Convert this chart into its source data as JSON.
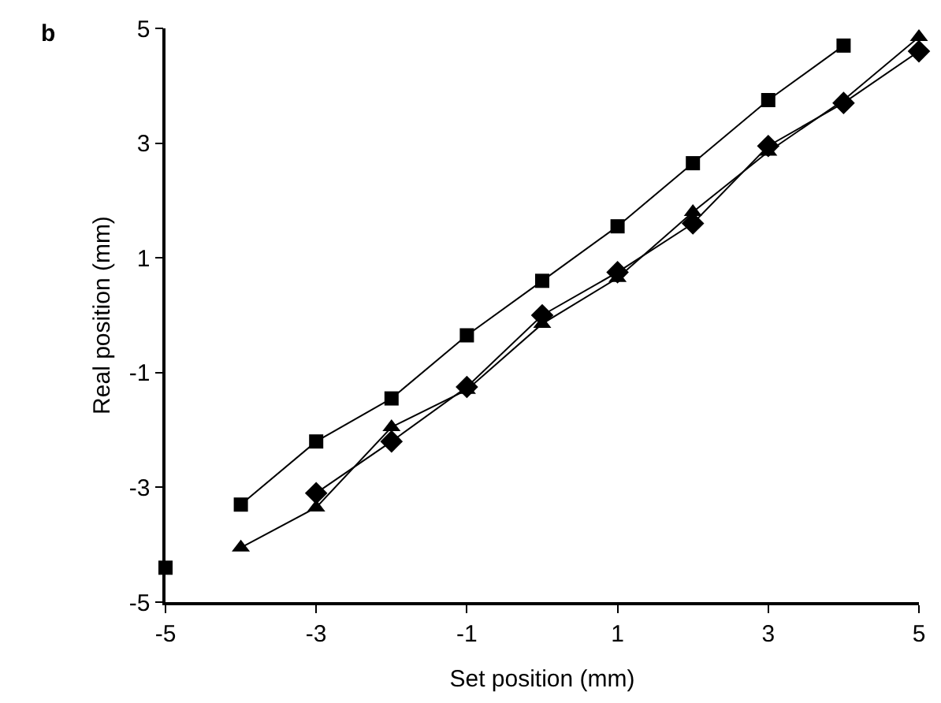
{
  "chart_data": {
    "type": "line",
    "xlabel": "Set position (mm)",
    "ylabel": "Real position (mm)",
    "annotations": [
      "b"
    ],
    "xlim": [
      -5,
      5
    ],
    "xticks": [
      -5,
      -3,
      -1,
      1,
      3,
      5
    ],
    "ylim": [
      -5,
      5
    ],
    "yticks": [
      -5,
      -3,
      -1,
      1,
      3,
      5
    ],
    "series": [
      {
        "type": "scatter",
        "marker": "square",
        "color": "#000000",
        "x": [
          -5
        ],
        "values": [
          -4.4
        ]
      },
      {
        "marker": "square",
        "color": "#000000",
        "x": [
          -4,
          -3,
          -2,
          -1,
          0,
          1,
          2,
          3,
          4
        ],
        "values": [
          -3.3,
          -2.2,
          -1.45,
          -0.35,
          0.6,
          1.55,
          2.65,
          3.75,
          4.7
        ]
      },
      {
        "marker": "triangle",
        "color": "#000000",
        "x": [
          -4,
          -3,
          -2,
          -1,
          0,
          1,
          2,
          3,
          4,
          5
        ],
        "values": [
          -4.05,
          -3.35,
          -1.95,
          -1.3,
          -0.15,
          0.65,
          1.8,
          2.85,
          3.75,
          4.85
        ]
      },
      {
        "marker": "diamond",
        "color": "#000000",
        "x": [
          -3,
          -2,
          -1,
          0,
          1,
          2,
          3,
          4,
          5
        ],
        "values": [
          -3.1,
          -2.2,
          -1.25,
          0,
          0.75,
          1.6,
          2.95,
          3.7,
          4.6
        ]
      }
    ]
  }
}
